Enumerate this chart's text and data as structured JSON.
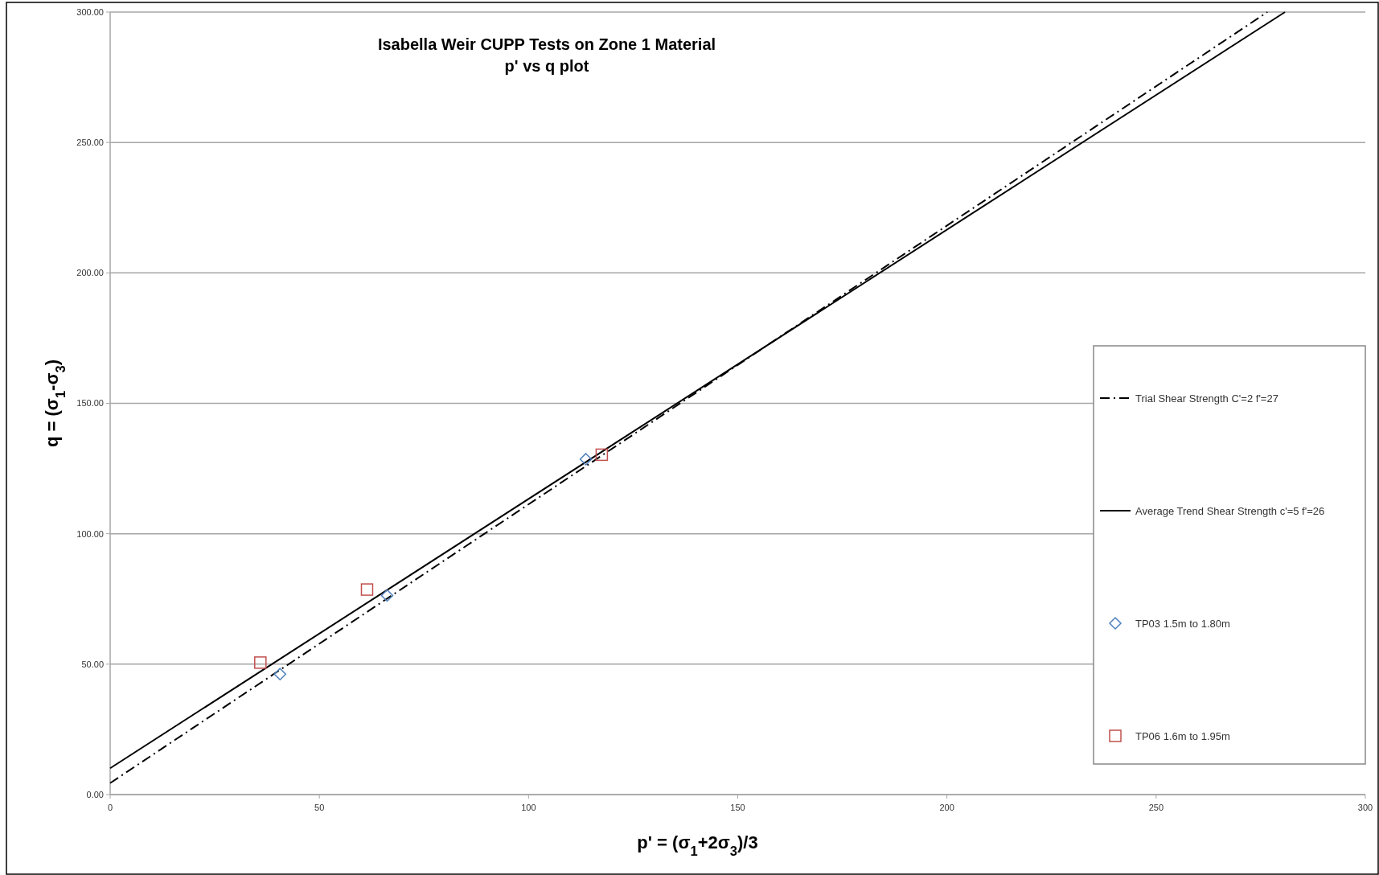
{
  "chart_data": {
    "type": "scatter",
    "title": "Isabella Weir CUPP Tests on Zone 1 Material",
    "subtitle": "p' vs q plot",
    "xlabel": "p' = (σ$_{1}$+2σ$_{3}$)/3",
    "ylabel": "q = (σ$_{1}$-σ$_{3}$)",
    "xlim": [
      0,
      300
    ],
    "xticks": [
      0,
      50,
      100,
      150,
      200,
      250,
      300
    ],
    "ylim": [
      0,
      300
    ],
    "yticks": [
      {
        "value": 0,
        "label": "0.00"
      },
      {
        "value": 50,
        "label": "50.00"
      },
      {
        "value": 100,
        "label": "100.00"
      },
      {
        "value": 150,
        "label": "150.00"
      },
      {
        "value": 200,
        "label": "200.00"
      },
      {
        "value": 250,
        "label": "250.00"
      },
      {
        "value": 300,
        "label": "300.00"
      }
    ],
    "grid": "y",
    "legend": "right",
    "series": [
      {
        "name": "Trial Shear Strength C'=2 f'=27",
        "type": "line",
        "color": "#000000",
        "line_style": "dashdot",
        "marker": "none",
        "x": [
          0,
          276.6
        ],
        "values": [
          4.4,
          300
        ]
      },
      {
        "name": "Average Trend Shear Strength c'=5 f'=26",
        "type": "line",
        "color": "#000000",
        "line_style": "solid",
        "marker": "none",
        "x": [
          0,
          280.8
        ],
        "values": [
          10.1,
          300
        ]
      },
      {
        "name": "TP03 1.5m to 1.80m",
        "type": "scatter",
        "color": "#4f81bd",
        "marker": "diamond",
        "x": [
          40.6,
          66.2,
          113.7
        ],
        "values": [
          46.2,
          76.3,
          128.6
        ]
      },
      {
        "name": "TP06 1.6m to 1.95m",
        "type": "scatter",
        "color": "#c0504d",
        "marker": "square",
        "x": [
          35.9,
          61.4,
          117.5
        ],
        "values": [
          50.6,
          78.6,
          130.3
        ]
      }
    ]
  }
}
